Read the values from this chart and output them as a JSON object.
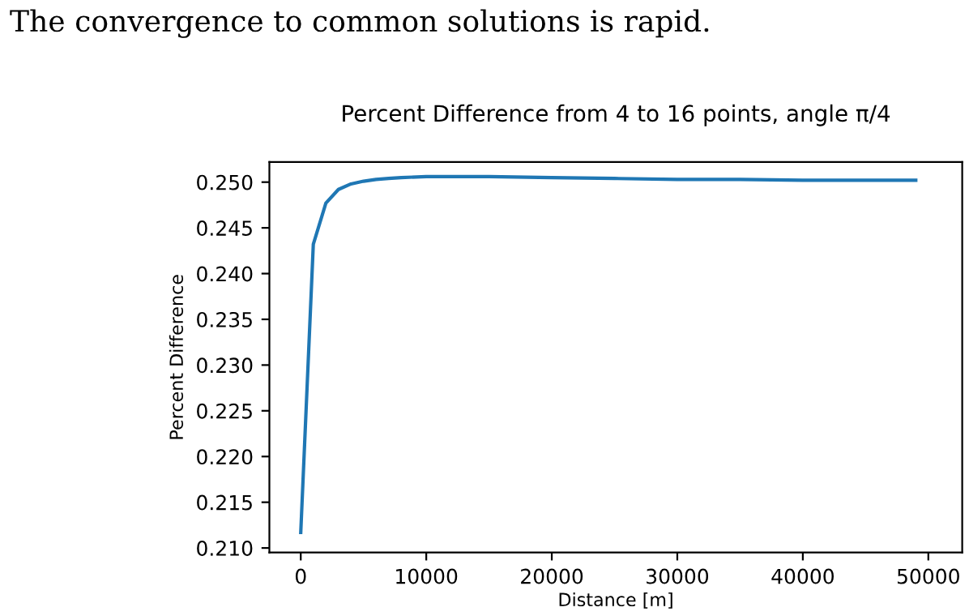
{
  "chart_data": {
    "type": "line",
    "title": "Percent Difference from 4 to 16 points, angle π/4",
    "xlabel": "Distance [m]",
    "ylabel": "Percent Difference",
    "annotations": [
      "The convergence to common solutions is rapid."
    ],
    "x": [
      0,
      1000,
      2000,
      3000,
      4000,
      5000,
      6000,
      7000,
      8000,
      10000,
      15000,
      20000,
      25000,
      30000,
      35000,
      40000,
      45000,
      49000
    ],
    "series": [
      {
        "color": "#1f77b4",
        "values": [
          0.2117,
          0.2432,
          0.2477,
          0.2492,
          0.2498,
          0.2501,
          0.2503,
          0.2504,
          0.2505,
          0.2506,
          0.2506,
          0.2505,
          0.2504,
          0.2503,
          0.2503,
          0.2502,
          0.2502,
          0.2502
        ]
      }
    ],
    "xlim": [
      -2500,
      52700
    ],
    "ylim": [
      0.2095,
      0.2522
    ],
    "xticks": [
      0,
      10000,
      20000,
      30000,
      40000,
      50000
    ],
    "yticks": [
      {
        "value": 0.21,
        "label": "0.210"
      },
      {
        "value": 0.215,
        "label": "0.215"
      },
      {
        "value": 0.22,
        "label": "0.220"
      },
      {
        "value": 0.225,
        "label": "0.225"
      },
      {
        "value": 0.23,
        "label": "0.230"
      },
      {
        "value": 0.235,
        "label": "0.235"
      },
      {
        "value": 0.24,
        "label": "0.240"
      },
      {
        "value": 0.245,
        "label": "0.245"
      },
      {
        "value": 0.25,
        "label": "0.250"
      }
    ],
    "grid": false,
    "legend": false
  }
}
